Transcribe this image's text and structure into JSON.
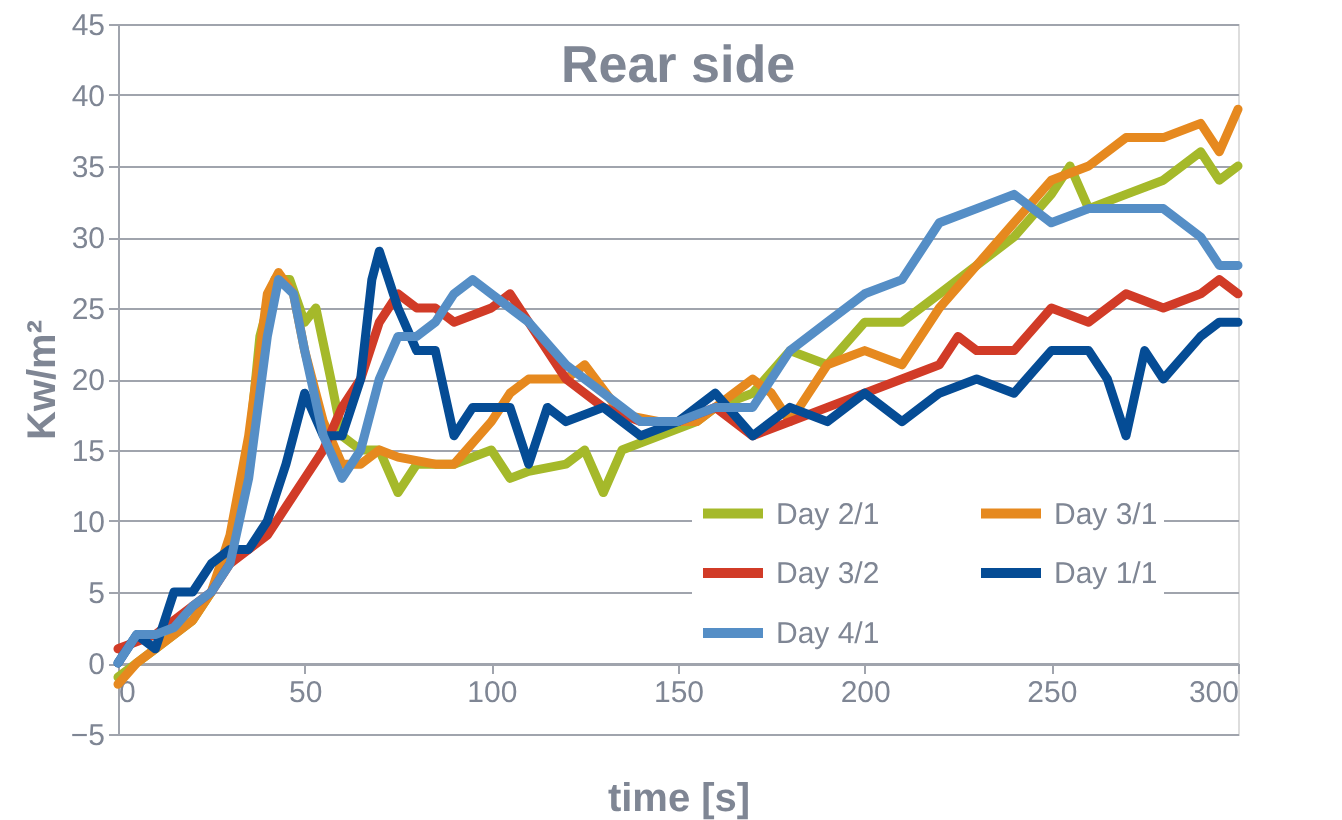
{
  "chart_data": {
    "type": "line",
    "title": "Rear side",
    "xlabel": "time [s]",
    "ylabel": "Kw/m²",
    "xlim": [
      0,
      300
    ],
    "xticks": [
      0,
      50,
      100,
      150,
      200,
      250,
      300
    ],
    "ylim": [
      -5,
      45
    ],
    "yticks": [
      -5,
      0,
      5,
      10,
      15,
      20,
      25,
      30,
      35,
      40,
      45
    ],
    "grid": "y",
    "legend": "bottom right",
    "marker": "none",
    "line_style": "solid",
    "series": [
      {
        "name": "Day 2/1",
        "color": "#a5b92a",
        "x": [
          0,
          5,
          10,
          15,
          20,
          25,
          30,
          35,
          38,
          42,
          46,
          50,
          53,
          57,
          60,
          65,
          70,
          75,
          80,
          90,
          100,
          105,
          110,
          120,
          125,
          130,
          135,
          145,
          155,
          160,
          170,
          180,
          190,
          200,
          210,
          220,
          230,
          240,
          250,
          255,
          260,
          270,
          280,
          290,
          295,
          300
        ],
        "values": [
          -1,
          0,
          1,
          2,
          3,
          5,
          8,
          15,
          23,
          27,
          27,
          24,
          25,
          20,
          16,
          15,
          15,
          12,
          14,
          14,
          15,
          13,
          13.5,
          14,
          15,
          12,
          15,
          16,
          17,
          18,
          19,
          22,
          21,
          24,
          24,
          26,
          28,
          30,
          33,
          35,
          32,
          33,
          34,
          36,
          34,
          35
        ]
      },
      {
        "name": "Day 3/1",
        "color": "#e6891f",
        "x": [
          0,
          5,
          10,
          15,
          20,
          25,
          30,
          35,
          40,
          43,
          47,
          50,
          55,
          60,
          65,
          70,
          75,
          85,
          90,
          100,
          105,
          110,
          120,
          125,
          135,
          145,
          155,
          165,
          170,
          175,
          180,
          190,
          200,
          210,
          220,
          230,
          240,
          250,
          260,
          270,
          280,
          290,
          295,
          300
        ],
        "values": [
          -1.5,
          0,
          1,
          2,
          3,
          5,
          9,
          16,
          26,
          27.5,
          26,
          22,
          17,
          14,
          14,
          15,
          14.5,
          14,
          14,
          17,
          19,
          20,
          20,
          21,
          17.5,
          17,
          17,
          19,
          20,
          19,
          17,
          21,
          22,
          21,
          25,
          28,
          31,
          34,
          35,
          37,
          37,
          38,
          36,
          39
        ]
      },
      {
        "name": "Day 3/2",
        "color": "#d13b27",
        "x": [
          0,
          10,
          15,
          20,
          25,
          30,
          35,
          40,
          45,
          50,
          55,
          60,
          65,
          70,
          75,
          80,
          85,
          90,
          100,
          105,
          110,
          120,
          130,
          140,
          150,
          160,
          170,
          180,
          190,
          200,
          210,
          220,
          225,
          230,
          240,
          250,
          260,
          270,
          280,
          290,
          295,
          300
        ],
        "values": [
          1,
          2,
          3,
          4,
          5,
          7,
          8,
          9,
          11,
          13,
          15,
          18,
          20,
          24,
          26,
          25,
          25,
          24,
          25,
          26,
          24,
          20,
          18,
          17,
          17,
          18,
          16,
          17,
          18,
          19,
          20,
          21,
          23,
          22,
          22,
          25,
          24,
          26,
          25,
          26,
          27,
          26
        ]
      },
      {
        "name": "Day 1/1",
        "color": "#054c95",
        "x": [
          0,
          5,
          10,
          15,
          20,
          25,
          30,
          35,
          40,
          45,
          50,
          55,
          60,
          65,
          68,
          70,
          75,
          80,
          85,
          90,
          95,
          100,
          105,
          110,
          115,
          120,
          130,
          140,
          150,
          160,
          170,
          180,
          190,
          200,
          210,
          220,
          230,
          240,
          250,
          260,
          265,
          270,
          275,
          280,
          290,
          295,
          300
        ],
        "values": [
          0,
          2,
          1,
          5,
          5,
          7,
          8,
          8,
          10,
          14,
          19,
          16,
          16,
          20,
          27,
          29,
          25,
          22,
          22,
          16,
          18,
          18,
          18,
          14,
          18,
          17,
          18,
          16,
          17,
          19,
          16,
          18,
          17,
          19,
          17,
          19,
          20,
          19,
          22,
          22,
          20,
          16,
          22,
          20,
          23,
          24,
          24
        ]
      },
      {
        "name": "Day 4/1",
        "color": "#558ec6",
        "x": [
          0,
          5,
          10,
          15,
          20,
          25,
          30,
          35,
          40,
          43,
          47,
          50,
          55,
          60,
          65,
          70,
          75,
          80,
          85,
          90,
          95,
          100,
          110,
          120,
          130,
          140,
          150,
          160,
          170,
          180,
          190,
          200,
          210,
          220,
          230,
          240,
          250,
          260,
          270,
          280,
          290,
          295,
          300
        ],
        "values": [
          0,
          2,
          2,
          2.5,
          4,
          5,
          7,
          13,
          23,
          27,
          26,
          22,
          16,
          13,
          15,
          20,
          23,
          23,
          24,
          26,
          27,
          26,
          24,
          21,
          19,
          17,
          17,
          18,
          18,
          22,
          24,
          26,
          27,
          31,
          32,
          33,
          31,
          32,
          32,
          32,
          30,
          28,
          28
        ]
      }
    ]
  }
}
